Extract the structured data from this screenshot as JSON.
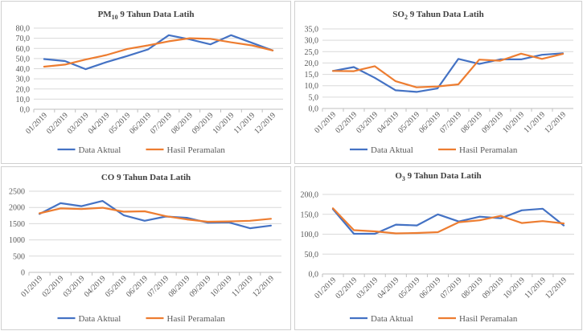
{
  "colors": {
    "aktual": "#4472C4",
    "peramalan": "#ED7D31"
  },
  "chart_data": [
    {
      "type": "line",
      "title_main": "PM",
      "title_sub": "10",
      "title_rest": " 9 Tahun Data Latih",
      "categories": [
        "01/2019",
        "02/2019",
        "03/2019",
        "04/2019",
        "05/2019",
        "06/2019",
        "07/2019",
        "08/2019",
        "09/2019",
        "10/2019",
        "11/2019",
        "12/2019"
      ],
      "ylim": [
        0,
        80
      ],
      "yticks": [
        "0,0",
        "10,0",
        "20,0",
        "30,0",
        "40,0",
        "50,0",
        "60,0",
        "70,0",
        "80,0"
      ],
      "series": [
        {
          "name": "Data Aktual",
          "color": "#4472C4",
          "values": [
            49.5,
            47.5,
            39.5,
            46.5,
            52.5,
            59.0,
            73.0,
            69.0,
            64.0,
            73.0,
            65.5,
            58.0
          ]
        },
        {
          "name": "Hasil Peramalan",
          "color": "#ED7D31",
          "values": [
            42.0,
            44.0,
            49.0,
            53.5,
            59.5,
            63.0,
            67.0,
            70.0,
            69.5,
            66.0,
            63.0,
            58.0
          ]
        }
      ],
      "legend": "bottom"
    },
    {
      "type": "line",
      "title_main": "SO",
      "title_sub": "2",
      "title_rest": " 9 Tahun Data Latih",
      "categories": [
        "01/2019",
        "02/2019",
        "03/2019",
        "04/2019",
        "05/2019",
        "06/2019",
        "07/2019",
        "08/2019",
        "09/2019",
        "10/2019",
        "11/2019",
        "12/2019"
      ],
      "ylim": [
        0,
        35
      ],
      "yticks": [
        "0,0",
        "5,0",
        "10,0",
        "15,0",
        "20,0",
        "25,0",
        "30,0",
        "35,0"
      ],
      "series": [
        {
          "name": "Data Aktual",
          "color": "#4472C4",
          "values": [
            16.5,
            18.2,
            13.5,
            8.0,
            7.3,
            8.8,
            21.8,
            19.6,
            21.6,
            21.6,
            23.6,
            24.3
          ]
        },
        {
          "name": "Hasil Peramalan",
          "color": "#ED7D31",
          "values": [
            16.5,
            16.4,
            18.6,
            12.0,
            9.3,
            9.7,
            10.6,
            21.5,
            21.0,
            24.1,
            21.8,
            24.0
          ]
        }
      ],
      "legend": "bottom"
    },
    {
      "type": "line",
      "title_main": "CO",
      "title_sub": "",
      "title_rest": " 9 Tahun Data Latih",
      "categories": [
        "01/2019",
        "02/2019",
        "03/2019",
        "04/2019",
        "05/2019",
        "06/2019",
        "07/2019",
        "08/2019",
        "09/2019",
        "10/2019",
        "11/2019",
        "12/2019"
      ],
      "ylim": [
        0,
        2500
      ],
      "yticks": [
        "0",
        "500",
        "1000",
        "1500",
        "2000",
        "2500"
      ],
      "series": [
        {
          "name": "Data Aktual",
          "color": "#4472C4",
          "values": [
            1800,
            2130,
            2040,
            2200,
            1760,
            1590,
            1720,
            1680,
            1530,
            1540,
            1360,
            1440
          ]
        },
        {
          "name": "Hasil Peramalan",
          "color": "#ED7D31",
          "values": [
            1820,
            1970,
            1950,
            1990,
            1870,
            1880,
            1730,
            1630,
            1560,
            1570,
            1590,
            1650
          ]
        }
      ],
      "legend": "bottom"
    },
    {
      "type": "line",
      "title_main": "O",
      "title_sub": "3",
      "title_rest": " 9 Tahun Data Latih",
      "categories": [
        "01/2019",
        "02/2019",
        "03/2019",
        "04/2019",
        "05/2019",
        "06/2019",
        "07/2019",
        "08/2019",
        "09/2019",
        "10/2019",
        "11/2019",
        "12/2019"
      ],
      "ylim": [
        0,
        200
      ],
      "yticks": [
        "0,0",
        "50,0",
        "100,0",
        "150,0",
        "200,0"
      ],
      "series": [
        {
          "name": "Data Aktual",
          "color": "#4472C4",
          "values": [
            163,
            101,
            101,
            124,
            122,
            150,
            132,
            144,
            140,
            160,
            164,
            122
          ]
        },
        {
          "name": "Hasil Peramalan",
          "color": "#ED7D31",
          "values": [
            165,
            110,
            107,
            102,
            103,
            105,
            130,
            135,
            146,
            128,
            133,
            127
          ]
        }
      ],
      "legend": "bottom"
    }
  ]
}
